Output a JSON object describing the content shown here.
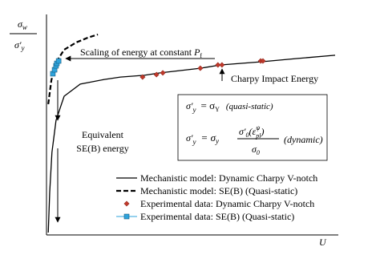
{
  "chart_data": {
    "type": "line",
    "ylabel": {
      "numerator": "σ",
      "numerator_sub": "w",
      "denominator": "σ′",
      "denominator_sub": "y"
    },
    "xlabel": "U",
    "xlim": [
      0,
      100
    ],
    "ylim": [
      0,
      100
    ],
    "annotations": {
      "scaling": {
        "text": "Scaling of energy at constant ",
        "var": "P",
        "sub": "f"
      },
      "charpy": "Charpy Impact Energy",
      "equivalent": [
        "Equivalent",
        "SE(B) energy"
      ]
    },
    "equations": {
      "eq1": {
        "lhs": "σ′",
        "lhs_sub": "y",
        "eq": "= σ",
        "rhs_sub": "Y",
        "note": "(quasi-static)"
      },
      "eq2": {
        "lhs": "σ′",
        "lhs_sub": "y",
        "eq": "= σ",
        "rhs_sub": "y",
        "num": "σ′",
        "num_sub": "0",
        "num_rate": "(ε̇",
        "num_rate_sub": "pl",
        "num_rate_sup": "ψ",
        "num_close": ")",
        "den": "σ",
        "den_sub": "0",
        "note": "(dynamic)"
      }
    },
    "series": [
      {
        "name": "Mechanistic model: Dynamic Charpy V-notch",
        "style": "solid",
        "color": "#000000",
        "x": [
          0.6,
          1.1,
          1.9,
          3.3,
          6.1,
          11.7,
          20,
          25.6,
          33.9,
          39.4,
          53.3,
          60.3,
          74.2,
          86.7,
          100
        ],
        "values": [
          1.1,
          19.3,
          37.5,
          52,
          62.9,
          68.4,
          70.5,
          71.6,
          72.4,
          73.5,
          75.6,
          77.1,
          78.5,
          80,
          81.5
        ]
      },
      {
        "name": "Mechanistic model: SE(B) (Quasi-static)",
        "style": "dashed",
        "color": "#000000",
        "x": [
          0.6,
          1.7,
          3.3,
          6.1,
          10.3,
          14.4,
          17.8
        ],
        "values": [
          59.3,
          70.2,
          78.2,
          84,
          87.3,
          89.5,
          90.9
        ]
      },
      {
        "name": "Experimental data: Dynamic Charpy V-notch",
        "style": "diamond",
        "color": "#c0392b",
        "x": [
          33.3,
          38.1,
          40.3,
          53.3,
          59.4,
          60.8,
          74.2,
          75
        ],
        "values": [
          71.6,
          72.7,
          73.5,
          75.6,
          77.1,
          77.1,
          78.9,
          78.9
        ]
      },
      {
        "name": "Experimental data: SE(B)  (Quasi-static)",
        "style": "square",
        "color": "#2ea3dc",
        "x": [
          2.2,
          2.8,
          3.3,
          3.6,
          4.2
        ],
        "values": [
          73.1,
          74.9,
          76.7,
          77.8,
          78.9
        ]
      }
    ]
  }
}
